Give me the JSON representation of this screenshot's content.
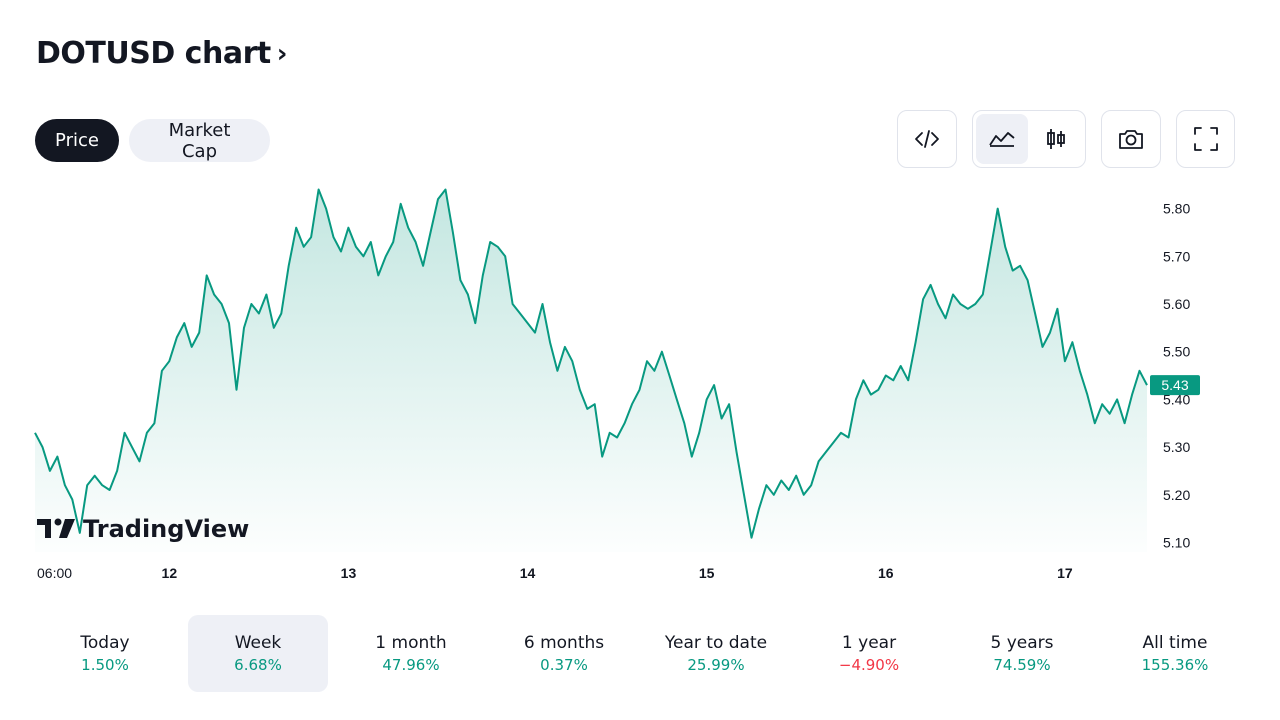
{
  "header": {
    "title": "DOTUSD chart",
    "chevron": "›"
  },
  "tabs": [
    {
      "label": "Price",
      "active": true
    },
    {
      "label": "Market Cap",
      "active": false
    }
  ],
  "toolbar": {
    "icons": [
      "embed-code-icon",
      "area-chart-icon",
      "candlestick-icon",
      "camera-icon",
      "fullscreen-icon"
    ],
    "selected": "area-chart-icon"
  },
  "watermark": "TradingView",
  "colors": {
    "line": "#089981",
    "up": "#089981",
    "down": "#f23645",
    "badge": "#089981",
    "text": "#131722",
    "selected_bg": "#eef0f6"
  },
  "chart_data": {
    "type": "area",
    "current_price": "5.43",
    "ylim": [
      5.08,
      5.86
    ],
    "y_ticks": [
      5.1,
      5.2,
      5.3,
      5.4,
      5.5,
      5.6,
      5.7,
      5.8
    ],
    "y_tick_labels": [
      "5.10",
      "5.20",
      "5.30",
      "5.40",
      "5.50",
      "5.60",
      "5.70",
      "5.80"
    ],
    "x_ticks": [
      {
        "label": "06:00",
        "x": 0
      },
      {
        "label": "12",
        "x": 18
      },
      {
        "label": "13",
        "x": 42
      },
      {
        "label": "14",
        "x": 66
      },
      {
        "label": "15",
        "x": 90
      },
      {
        "label": "16",
        "x": 114
      },
      {
        "label": "17",
        "x": 138
      }
    ],
    "xlim": [
      0,
      149
    ],
    "series": [
      {
        "points": [
          [
            0,
            5.33
          ],
          [
            1,
            5.3
          ],
          [
            2,
            5.25
          ],
          [
            3,
            5.28
          ],
          [
            4,
            5.22
          ],
          [
            5,
            5.19
          ],
          [
            6,
            5.12
          ],
          [
            7,
            5.22
          ],
          [
            8,
            5.24
          ],
          [
            9,
            5.22
          ],
          [
            10,
            5.21
          ],
          [
            11,
            5.25
          ],
          [
            12,
            5.33
          ],
          [
            13,
            5.3
          ],
          [
            14,
            5.27
          ],
          [
            15,
            5.33
          ],
          [
            16,
            5.35
          ],
          [
            17,
            5.46
          ],
          [
            18,
            5.48
          ],
          [
            19,
            5.53
          ],
          [
            20,
            5.56
          ],
          [
            21,
            5.51
          ],
          [
            22,
            5.54
          ],
          [
            23,
            5.66
          ],
          [
            24,
            5.62
          ],
          [
            25,
            5.6
          ],
          [
            26,
            5.56
          ],
          [
            27,
            5.42
          ],
          [
            28,
            5.55
          ],
          [
            29,
            5.6
          ],
          [
            30,
            5.58
          ],
          [
            31,
            5.62
          ],
          [
            32,
            5.55
          ],
          [
            33,
            5.58
          ],
          [
            34,
            5.68
          ],
          [
            35,
            5.76
          ],
          [
            36,
            5.72
          ],
          [
            37,
            5.74
          ],
          [
            38,
            5.84
          ],
          [
            39,
            5.8
          ],
          [
            40,
            5.74
          ],
          [
            41,
            5.71
          ],
          [
            42,
            5.76
          ],
          [
            43,
            5.72
          ],
          [
            44,
            5.7
          ],
          [
            45,
            5.73
          ],
          [
            46,
            5.66
          ],
          [
            47,
            5.7
          ],
          [
            48,
            5.73
          ],
          [
            49,
            5.81
          ],
          [
            50,
            5.76
          ],
          [
            51,
            5.73
          ],
          [
            52,
            5.68
          ],
          [
            53,
            5.75
          ],
          [
            54,
            5.82
          ],
          [
            55,
            5.84
          ],
          [
            56,
            5.75
          ],
          [
            57,
            5.65
          ],
          [
            58,
            5.62
          ],
          [
            59,
            5.56
          ],
          [
            60,
            5.66
          ],
          [
            61,
            5.73
          ],
          [
            62,
            5.72
          ],
          [
            63,
            5.7
          ],
          [
            64,
            5.6
          ],
          [
            65,
            5.58
          ],
          [
            66,
            5.56
          ],
          [
            67,
            5.54
          ],
          [
            68,
            5.6
          ],
          [
            69,
            5.52
          ],
          [
            70,
            5.46
          ],
          [
            71,
            5.51
          ],
          [
            72,
            5.48
          ],
          [
            73,
            5.42
          ],
          [
            74,
            5.38
          ],
          [
            75,
            5.39
          ],
          [
            76,
            5.28
          ],
          [
            77,
            5.33
          ],
          [
            78,
            5.32
          ],
          [
            79,
            5.35
          ],
          [
            80,
            5.39
          ],
          [
            81,
            5.42
          ],
          [
            82,
            5.48
          ],
          [
            83,
            5.46
          ],
          [
            84,
            5.5
          ],
          [
            85,
            5.45
          ],
          [
            86,
            5.4
          ],
          [
            87,
            5.35
          ],
          [
            88,
            5.28
          ],
          [
            89,
            5.33
          ],
          [
            90,
            5.4
          ],
          [
            91,
            5.43
          ],
          [
            92,
            5.36
          ],
          [
            93,
            5.39
          ],
          [
            94,
            5.29
          ],
          [
            95,
            5.2
          ],
          [
            96,
            5.11
          ],
          [
            97,
            5.17
          ],
          [
            98,
            5.22
          ],
          [
            99,
            5.2
          ],
          [
            100,
            5.23
          ],
          [
            101,
            5.21
          ],
          [
            102,
            5.24
          ],
          [
            103,
            5.2
          ],
          [
            104,
            5.22
          ],
          [
            105,
            5.27
          ],
          [
            106,
            5.29
          ],
          [
            107,
            5.31
          ],
          [
            108,
            5.33
          ],
          [
            109,
            5.32
          ],
          [
            110,
            5.4
          ],
          [
            111,
            5.44
          ],
          [
            112,
            5.41
          ],
          [
            113,
            5.42
          ],
          [
            114,
            5.45
          ],
          [
            115,
            5.44
          ],
          [
            116,
            5.47
          ],
          [
            117,
            5.44
          ],
          [
            118,
            5.52
          ],
          [
            119,
            5.61
          ],
          [
            120,
            5.64
          ],
          [
            121,
            5.6
          ],
          [
            122,
            5.57
          ],
          [
            123,
            5.62
          ],
          [
            124,
            5.6
          ],
          [
            125,
            5.59
          ],
          [
            126,
            5.6
          ],
          [
            127,
            5.62
          ],
          [
            128,
            5.71
          ],
          [
            129,
            5.8
          ],
          [
            130,
            5.72
          ],
          [
            131,
            5.67
          ],
          [
            132,
            5.68
          ],
          [
            133,
            5.65
          ],
          [
            134,
            5.58
          ],
          [
            135,
            5.51
          ],
          [
            136,
            5.54
          ],
          [
            137,
            5.59
          ],
          [
            138,
            5.48
          ],
          [
            139,
            5.52
          ],
          [
            140,
            5.46
          ],
          [
            141,
            5.41
          ],
          [
            142,
            5.35
          ],
          [
            143,
            5.39
          ],
          [
            144,
            5.37
          ],
          [
            145,
            5.4
          ],
          [
            146,
            5.35
          ],
          [
            147,
            5.41
          ],
          [
            148,
            5.46
          ],
          [
            149,
            5.43
          ]
        ]
      }
    ]
  },
  "periods": [
    {
      "label": "Today",
      "value": "1.50%",
      "trend": "up",
      "selected": false
    },
    {
      "label": "Week",
      "value": "6.68%",
      "trend": "up",
      "selected": true
    },
    {
      "label": "1 month",
      "value": "47.96%",
      "trend": "up",
      "selected": false
    },
    {
      "label": "6 months",
      "value": "0.37%",
      "trend": "up",
      "selected": false
    },
    {
      "label": "Year to date",
      "value": "25.99%",
      "trend": "up",
      "selected": false
    },
    {
      "label": "1 year",
      "value": "−4.90%",
      "trend": "down",
      "selected": false
    },
    {
      "label": "5 years",
      "value": "74.59%",
      "trend": "up",
      "selected": false
    },
    {
      "label": "All time",
      "value": "155.36%",
      "trend": "up",
      "selected": false
    }
  ]
}
